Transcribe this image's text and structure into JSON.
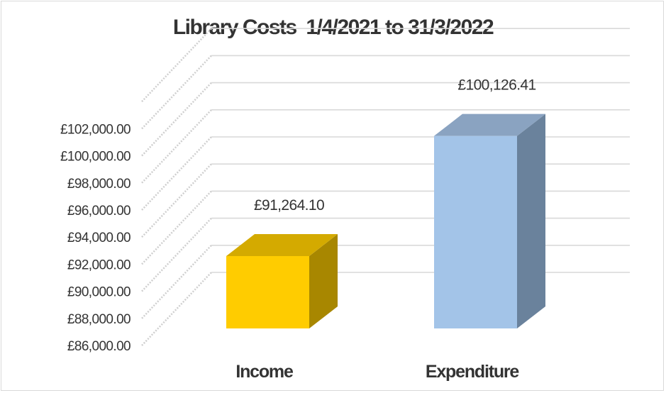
{
  "chart_data": {
    "type": "bar",
    "title": "Library Costs  1/4/2021 to 31/3/2022",
    "categories": [
      "Income",
      "Expenditure"
    ],
    "values": [
      91264.1,
      100126.41
    ],
    "data_labels": [
      "£91,264.10",
      "£100,126.41"
    ],
    "ylim": [
      86000,
      104000
    ],
    "yticks": [
      86000,
      88000,
      90000,
      92000,
      94000,
      96000,
      98000,
      100000,
      102000
    ],
    "ytick_labels": [
      "£86,000.00",
      "£88,000.00",
      "£90,000.00",
      "£92,000.00",
      "£94,000.00",
      "£96,000.00",
      "£98,000.00",
      "£100,000.00",
      "£102,000.00"
    ],
    "xlabel": "",
    "ylabel": "",
    "grid": true,
    "bar_colors": [
      "#ffcc00",
      "#a3c4e8"
    ],
    "bar_side_colors": [
      "#a88700",
      "#6a829c"
    ],
    "bar_top_colors": [
      "#d4aa00",
      "#8aa3c1"
    ]
  }
}
